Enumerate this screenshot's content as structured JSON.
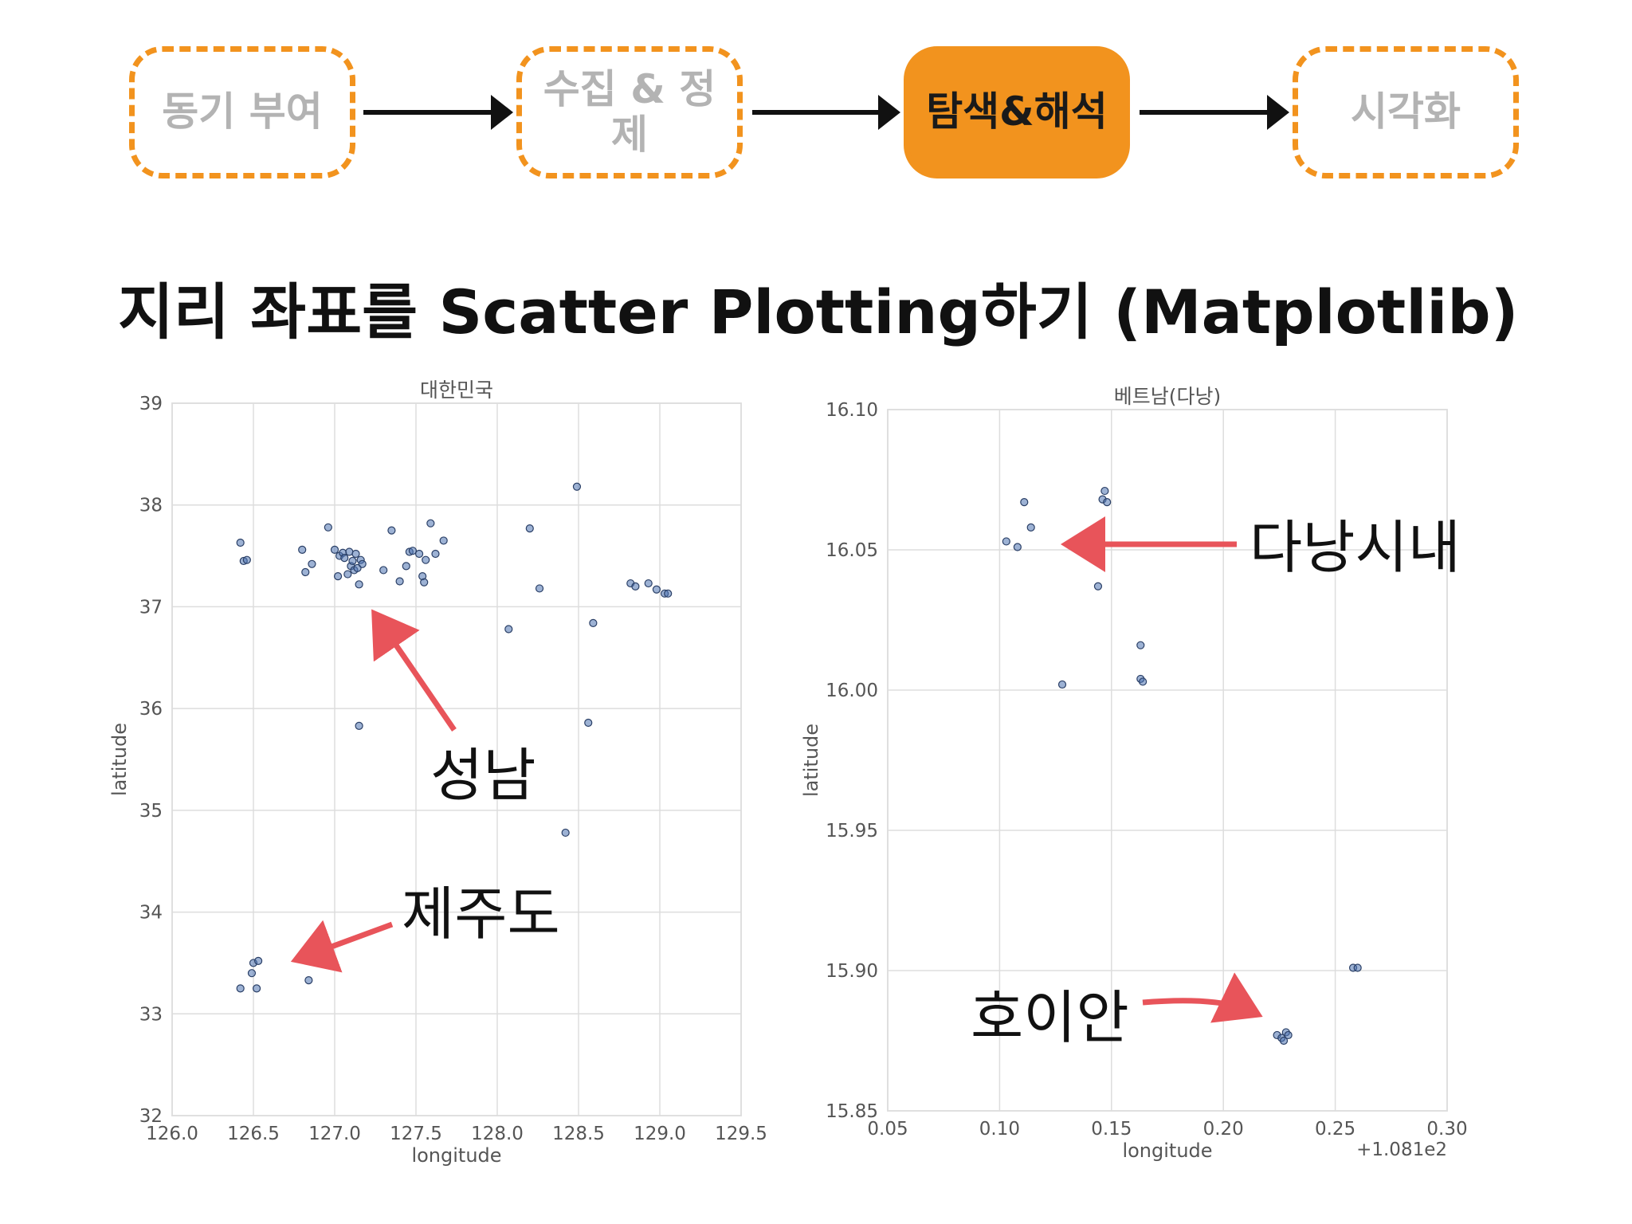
{
  "process": {
    "steps": [
      "동기 부여",
      "수집 & 정제",
      "탐색&해석",
      "시각화"
    ],
    "active_index": 2,
    "accent_color": "#f2931e"
  },
  "slide_title": "지리 좌표를 Scatter Plotting하기  (Matplotlib)",
  "annotations": {
    "seongnam": "성남",
    "jeju": "제주도",
    "danang_city": "다낭시내",
    "hoian": "호이안",
    "arrow_color": "#e8545a"
  },
  "chart_data": [
    {
      "type": "scatter",
      "title": "대한민국",
      "xlabel": "longitude",
      "ylabel": "latitude",
      "xlim": [
        126.0,
        129.5
      ],
      "ylim": [
        32,
        39
      ],
      "xticks": [
        "126.0",
        "126.5",
        "127.0",
        "127.5",
        "128.0",
        "128.5",
        "129.0",
        "129.5"
      ],
      "yticks": [
        "32",
        "33",
        "34",
        "35",
        "36",
        "37",
        "38",
        "39"
      ],
      "grid": true,
      "marker_color": "#4c72b0",
      "points": [
        [
          126.42,
          37.63
        ],
        [
          126.44,
          37.45
        ],
        [
          126.46,
          37.46
        ],
        [
          126.8,
          37.56
        ],
        [
          126.82,
          37.34
        ],
        [
          126.86,
          37.42
        ],
        [
          126.96,
          37.78
        ],
        [
          127.0,
          37.56
        ],
        [
          127.02,
          37.3
        ],
        [
          127.03,
          37.5
        ],
        [
          127.05,
          37.53
        ],
        [
          127.06,
          37.48
        ],
        [
          127.08,
          37.32
        ],
        [
          127.09,
          37.54
        ],
        [
          127.1,
          37.4
        ],
        [
          127.11,
          37.45
        ],
        [
          127.12,
          37.36
        ],
        [
          127.13,
          37.52
        ],
        [
          127.14,
          37.38
        ],
        [
          127.15,
          37.22
        ],
        [
          127.16,
          37.46
        ],
        [
          127.17,
          37.42
        ],
        [
          127.15,
          35.83
        ],
        [
          127.3,
          37.36
        ],
        [
          127.35,
          37.75
        ],
        [
          127.4,
          37.25
        ],
        [
          127.44,
          37.4
        ],
        [
          127.46,
          37.54
        ],
        [
          127.48,
          37.55
        ],
        [
          127.52,
          37.52
        ],
        [
          127.54,
          37.3
        ],
        [
          127.55,
          37.24
        ],
        [
          127.56,
          37.46
        ],
        [
          127.59,
          37.82
        ],
        [
          127.62,
          37.52
        ],
        [
          127.67,
          37.65
        ],
        [
          128.07,
          36.78
        ],
        [
          128.2,
          37.77
        ],
        [
          128.26,
          37.18
        ],
        [
          128.42,
          34.78
        ],
        [
          128.49,
          38.18
        ],
        [
          128.56,
          35.86
        ],
        [
          128.59,
          36.84
        ],
        [
          128.82,
          37.23
        ],
        [
          128.85,
          37.2
        ],
        [
          128.93,
          37.23
        ],
        [
          128.98,
          37.17
        ],
        [
          129.03,
          37.13
        ],
        [
          129.05,
          37.13
        ],
        [
          126.42,
          33.25
        ],
        [
          126.49,
          33.4
        ],
        [
          126.5,
          33.5
        ],
        [
          126.52,
          33.25
        ],
        [
          126.53,
          33.52
        ],
        [
          126.84,
          33.33
        ]
      ]
    },
    {
      "type": "scatter",
      "title": "베트남(다낭)",
      "xlabel": "longitude",
      "ylabel": "latitude",
      "xlim": [
        0.05,
        0.3
      ],
      "ylim": [
        15.85,
        16.1
      ],
      "xticks": [
        "0.05",
        "0.10",
        "0.15",
        "0.20",
        "0.25",
        "0.30"
      ],
      "yticks": [
        "15.85",
        "15.90",
        "15.95",
        "16.00",
        "16.05",
        "16.10"
      ],
      "x_offset_label": "+1.081e2",
      "grid": true,
      "marker_color": "#4c72b0",
      "points": [
        [
          0.103,
          16.053
        ],
        [
          0.108,
          16.051
        ],
        [
          0.111,
          16.067
        ],
        [
          0.114,
          16.058
        ],
        [
          0.128,
          16.002
        ],
        [
          0.144,
          16.037
        ],
        [
          0.146,
          16.068
        ],
        [
          0.147,
          16.071
        ],
        [
          0.148,
          16.067
        ],
        [
          0.163,
          16.016
        ],
        [
          0.163,
          16.004
        ],
        [
          0.164,
          16.003
        ],
        [
          0.224,
          15.877
        ],
        [
          0.226,
          15.876
        ],
        [
          0.227,
          15.875
        ],
        [
          0.228,
          15.878
        ],
        [
          0.229,
          15.877
        ],
        [
          0.258,
          15.901
        ],
        [
          0.26,
          15.901
        ]
      ]
    }
  ]
}
